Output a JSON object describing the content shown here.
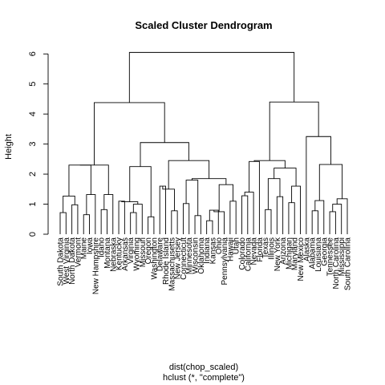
{
  "chart_data": {
    "type": "dendrogram",
    "title": "Scaled Cluster Dendrogram",
    "ylabel": "Height",
    "xlabel": "dist(chop_scaled)",
    "sub": "hclust (*, \"complete\")",
    "ylim": [
      0,
      6.3
    ],
    "yticks": [
      0,
      1,
      2,
      3,
      4,
      5,
      6
    ],
    "leaves": [
      "South Dakota",
      "West Virginia",
      "North Dakota",
      "Vermont",
      "Maine",
      "Iowa",
      "New Hampshire",
      "Idaho",
      "Montana",
      "Nebraska",
      "Kentucky",
      "Arkansas",
      "Virginia",
      "Wyoming",
      "Missouri",
      "Oregon",
      "Washington",
      "Delaware",
      "Rhode Island",
      "Massachusetts",
      "New Jersey",
      "Connecticut",
      "Minnesota",
      "Wisconsin",
      "Oklahoma",
      "Indiana",
      "Kansas",
      "Ohio",
      "Pennsylvania",
      "Hawaii",
      "Utah",
      "Colorado",
      "California",
      "Nevada",
      "Florida",
      "Texas",
      "Illinois",
      "New York",
      "Arizona",
      "Michigan",
      "Maryland",
      "New Mexico",
      "Alaska",
      "Alabama",
      "Louisiana",
      "Georgia",
      "Tennessee",
      "North Carolina",
      "Mississippi",
      "South Carolina"
    ],
    "merges": [
      {
        "a": "South Dakota",
        "b": "West Virginia",
        "h": 0.72
      },
      {
        "a": "North Dakota",
        "b": "Vermont",
        "h": 0.98
      },
      {
        "a": 0,
        "b": 1,
        "h": 1.27
      },
      {
        "a": "Maine",
        "b": "Iowa",
        "h": 0.65
      },
      {
        "a": 3,
        "b": "New Hampshire",
        "h": 1.32
      },
      {
        "a": 2,
        "b": 4,
        "h": 2.3
      },
      {
        "a": "Idaho",
        "b": "Montana",
        "h": 0.82
      },
      {
        "a": 6,
        "b": "Nebraska",
        "h": 1.32
      },
      {
        "a": 5,
        "b": 7,
        "h": 2.3
      },
      {
        "a": "Kentucky",
        "b": "Arkansas",
        "h": 1.1
      },
      {
        "a": "Virginia",
        "b": "Wyoming",
        "h": 0.72
      },
      {
        "a": 10,
        "b": "Missouri",
        "h": 1.0
      },
      {
        "a": 9,
        "b": 11,
        "h": 1.08
      },
      {
        "a": "Oregon",
        "b": "Washington",
        "h": 0.58
      },
      {
        "a": 12,
        "b": 13,
        "h": 2.25
      },
      {
        "a": "Delaware",
        "b": "Rhode Island",
        "h": 1.6
      },
      {
        "a": "Massachusetts",
        "b": "New Jersey",
        "h": 0.78
      },
      {
        "a": 15,
        "b": 16,
        "h": 1.5
      },
      {
        "a": "Connecticut",
        "b": "Minnesota",
        "h": 1.02
      },
      {
        "a": "Wisconsin",
        "b": "Oklahoma",
        "h": 0.62
      },
      {
        "a": 18,
        "b": 19,
        "h": 1.8
      },
      {
        "a": "Indiana",
        "b": "Kansas",
        "h": 0.45
      },
      {
        "a": 21,
        "b": "Ohio",
        "h": 0.8
      },
      {
        "a": 22,
        "b": "Pennsylvania",
        "h": 0.75
      },
      {
        "a": "Hawaii",
        "b": "Utah",
        "h": 1.1
      },
      {
        "a": 23,
        "b": 24,
        "h": 1.65
      },
      {
        "a": 20,
        "b": 25,
        "h": 1.85
      },
      {
        "a": 17,
        "b": 26,
        "h": 2.45
      },
      {
        "a": 14,
        "b": 27,
        "h": 3.05
      },
      {
        "a": 8,
        "b": 28,
        "h": 4.38
      },
      {
        "a": "Colorado",
        "b": "California",
        "h": 1.28
      },
      {
        "a": 30,
        "b": "Nevada",
        "h": 1.4
      },
      {
        "a": 31,
        "b": "Florida",
        "h": 2.42
      },
      {
        "a": "Texas",
        "b": "Illinois",
        "h": 0.82
      },
      {
        "a": "New York",
        "b": "Arizona",
        "h": 1.25
      },
      {
        "a": 33,
        "b": 34,
        "h": 1.85
      },
      {
        "a": "Michigan",
        "b": "Maryland",
        "h": 1.05
      },
      {
        "a": 36,
        "b": "New Mexico",
        "h": 1.6
      },
      {
        "a": 35,
        "b": 37,
        "h": 2.2
      },
      {
        "a": 32,
        "b": 38,
        "h": 2.45
      },
      {
        "a": "Alabama",
        "b": "Louisiana",
        "h": 0.78
      },
      {
        "a": 40,
        "b": "Georgia",
        "h": 1.12
      },
      {
        "a": "Tennessee",
        "b": "North Carolina",
        "h": 0.75
      },
      {
        "a": 42,
        "b": "Mississippi",
        "h": 1.0
      },
      {
        "a": 43,
        "b": "South Carolina",
        "h": 1.18
      },
      {
        "a": 41,
        "b": 44,
        "h": 2.32
      },
      {
        "a": "Alaska",
        "b": 45,
        "h": 3.25
      },
      {
        "a": 39,
        "b": 46,
        "h": 4.4
      },
      {
        "a": 29,
        "b": 47,
        "h": 6.05
      }
    ]
  }
}
